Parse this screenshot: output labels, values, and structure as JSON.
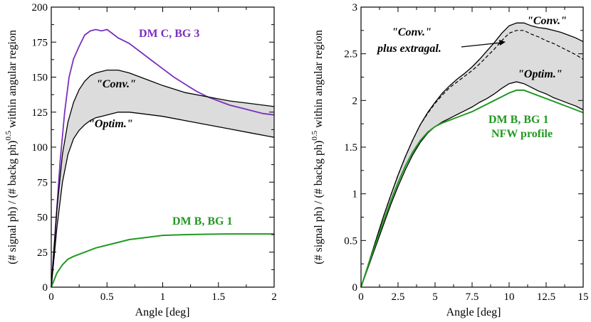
{
  "chart_data": [
    {
      "type": "line",
      "xlabel": "Angle  [deg]",
      "ylabel": "(# signal ph) / (# backg ph)",
      "ylabel_exp": "0.5",
      "ylabel_tail": " within angular region",
      "xlim": [
        0,
        2
      ],
      "ylim": [
        0,
        200
      ],
      "xticks": [
        "0",
        "0.5",
        "1",
        "1.5",
        "2"
      ],
      "yticks": [
        "0",
        "25",
        "50",
        "75",
        "100",
        "125",
        "150",
        "175",
        "200"
      ],
      "colors": {
        "dmc": "#7b2fbe",
        "dmb": "#229922",
        "band": "#dcdcdc",
        "line": "#000000"
      },
      "annotations": [
        {
          "text": "DM C, BG 3",
          "color": "#7b2fbe",
          "italic": false
        },
        {
          "text": "\"Conv.\"",
          "color": "#000000",
          "italic": true
        },
        {
          "text": "\"Optim.\"",
          "color": "#000000",
          "italic": true
        },
        {
          "text": "DM B, BG 1",
          "color": "#229922",
          "italic": false
        }
      ],
      "series": [
        {
          "name": "DM C, BG 3",
          "x": [
            0,
            0.04,
            0.08,
            0.12,
            0.16,
            0.2,
            0.25,
            0.3,
            0.35,
            0.4,
            0.45,
            0.5,
            0.55,
            0.6,
            0.7,
            0.8,
            0.9,
            1.0,
            1.1,
            1.2,
            1.3,
            1.4,
            1.5,
            1.6,
            1.7,
            1.8,
            1.9,
            2.0
          ],
          "y": [
            0,
            45,
            90,
            125,
            150,
            163,
            172,
            180,
            183,
            184,
            183,
            184,
            181,
            178,
            174,
            168,
            162,
            156,
            150,
            145,
            140,
            136,
            133,
            130,
            128,
            126,
            124,
            123
          ]
        },
        {
          "name": "\"Conv.\"",
          "x": [
            0,
            0.05,
            0.1,
            0.15,
            0.2,
            0.25,
            0.3,
            0.35,
            0.4,
            0.45,
            0.5,
            0.55,
            0.6,
            0.7,
            0.8,
            0.9,
            1.0,
            1.2,
            1.4,
            1.6,
            1.8,
            2.0
          ],
          "y": [
            0,
            55,
            95,
            118,
            132,
            141,
            147,
            151,
            153,
            154,
            155,
            155,
            155,
            153,
            150,
            147,
            144,
            139,
            136,
            133,
            131,
            129
          ]
        },
        {
          "name": "\"Optim.\"",
          "x": [
            0,
            0.05,
            0.1,
            0.15,
            0.2,
            0.25,
            0.3,
            0.35,
            0.4,
            0.45,
            0.5,
            0.55,
            0.6,
            0.65,
            0.7,
            0.8,
            0.9,
            1.0,
            1.2,
            1.4,
            1.6,
            1.8,
            2.0
          ],
          "y": [
            0,
            42,
            75,
            95,
            106,
            112,
            116,
            119,
            121,
            122,
            123,
            124,
            125,
            125,
            125,
            124,
            123,
            122,
            119,
            116,
            113,
            110,
            107
          ]
        },
        {
          "name": "DM B, BG 1",
          "x": [
            0,
            0.05,
            0.1,
            0.15,
            0.2,
            0.3,
            0.4,
            0.5,
            0.6,
            0.7,
            0.8,
            0.9,
            1.0,
            1.2,
            1.4,
            1.6,
            1.8,
            2.0
          ],
          "y": [
            0,
            10,
            16,
            20,
            22,
            25,
            28,
            30,
            32,
            34,
            35,
            36,
            37,
            37.5,
            37.8,
            38,
            38,
            38
          ]
        }
      ]
    },
    {
      "type": "line",
      "xlabel": "Angle  [deg]",
      "ylabel": "(# signal ph) / (# backg ph)",
      "ylabel_exp": "0.5",
      "ylabel_tail": " within angular region",
      "xlim": [
        0,
        15
      ],
      "ylim": [
        0,
        3
      ],
      "xticks": [
        "0",
        "2.5",
        "5",
        "7.5",
        "10",
        "12.5",
        "15"
      ],
      "yticks": [
        "0",
        "0.5",
        "1",
        "1.5",
        "2",
        "2.5",
        "3"
      ],
      "colors": {
        "dmb": "#229922",
        "band": "#dcdcdc",
        "line": "#000000"
      },
      "annotations": [
        {
          "text": "\"Conv.\"",
          "color": "#000000",
          "italic": true
        },
        {
          "text": "\"Conv.\"",
          "color": "#000000",
          "italic": true
        },
        {
          "text": "plus extragal.",
          "color": "#000000",
          "italic": true
        },
        {
          "text": "\"Optim.\"",
          "color": "#000000",
          "italic": true
        },
        {
          "text": "DM B, BG 1",
          "color": "#229922",
          "italic": false
        },
        {
          "text": "NFW profile",
          "color": "#229922",
          "italic": false
        }
      ],
      "series": [
        {
          "name": "\"Conv.\"",
          "x": [
            0,
            0.25,
            0.5,
            1,
            1.5,
            2,
            2.5,
            3,
            3.5,
            4,
            4.5,
            5,
            5.5,
            6,
            6.5,
            7,
            7.5,
            8,
            8.5,
            9,
            9.5,
            10,
            10.5,
            11,
            11.5,
            12,
            12.5,
            13,
            13.5,
            14,
            14.5,
            15
          ],
          "y": [
            0,
            0.12,
            0.25,
            0.5,
            0.75,
            0.98,
            1.2,
            1.4,
            1.58,
            1.74,
            1.87,
            1.98,
            2.08,
            2.16,
            2.23,
            2.29,
            2.36,
            2.44,
            2.53,
            2.62,
            2.72,
            2.8,
            2.83,
            2.83,
            2.8,
            2.78,
            2.77,
            2.75,
            2.73,
            2.7,
            2.67,
            2.63
          ]
        },
        {
          "name": "\"Conv.\" plus extragal.",
          "x": [
            0,
            0.25,
            0.5,
            1,
            1.5,
            2,
            2.5,
            3,
            3.5,
            4,
            4.5,
            5,
            5.5,
            6,
            6.5,
            7,
            7.5,
            8,
            8.5,
            9,
            9.5,
            10,
            10.5,
            11,
            11.5,
            12,
            12.5,
            13,
            13.5,
            14,
            14.5,
            15
          ],
          "y": [
            0,
            0.12,
            0.25,
            0.5,
            0.75,
            0.98,
            1.2,
            1.4,
            1.58,
            1.74,
            1.86,
            1.97,
            2.06,
            2.14,
            2.2,
            2.26,
            2.32,
            2.39,
            2.47,
            2.55,
            2.64,
            2.72,
            2.75,
            2.75,
            2.71,
            2.68,
            2.64,
            2.61,
            2.57,
            2.53,
            2.49,
            2.44
          ]
        },
        {
          "name": "\"Optim.\"",
          "x": [
            0,
            0.25,
            0.5,
            1,
            1.5,
            2,
            2.5,
            3,
            3.5,
            4,
            4.5,
            5,
            5.5,
            6,
            6.5,
            7,
            7.5,
            8,
            8.5,
            9,
            9.5,
            10,
            10.5,
            11,
            11.5,
            12,
            12.5,
            13,
            13.5,
            14,
            14.5,
            15
          ],
          "y": [
            0,
            0.11,
            0.22,
            0.44,
            0.66,
            0.88,
            1.08,
            1.26,
            1.42,
            1.55,
            1.65,
            1.72,
            1.77,
            1.81,
            1.85,
            1.89,
            1.93,
            1.98,
            2.02,
            2.07,
            2.13,
            2.18,
            2.2,
            2.18,
            2.14,
            2.1,
            2.07,
            2.03,
            2.0,
            1.97,
            1.94,
            1.9
          ]
        },
        {
          "name": "DM B, BG 1 NFW profile",
          "x": [
            0,
            0.25,
            0.5,
            1,
            1.5,
            2,
            2.5,
            3,
            3.5,
            4,
            4.5,
            5,
            5.5,
            6,
            6.5,
            7,
            7.5,
            8,
            8.5,
            9,
            9.5,
            10,
            10.5,
            11,
            11.5,
            12,
            12.5,
            13,
            13.5,
            14,
            14.5,
            15
          ],
          "y": [
            0,
            0.12,
            0.24,
            0.47,
            0.7,
            0.92,
            1.12,
            1.3,
            1.45,
            1.57,
            1.66,
            1.72,
            1.76,
            1.79,
            1.82,
            1.85,
            1.88,
            1.92,
            1.96,
            2.0,
            2.04,
            2.08,
            2.11,
            2.11,
            2.08,
            2.05,
            2.02,
            1.99,
            1.96,
            1.93,
            1.9,
            1.87
          ]
        }
      ]
    }
  ]
}
